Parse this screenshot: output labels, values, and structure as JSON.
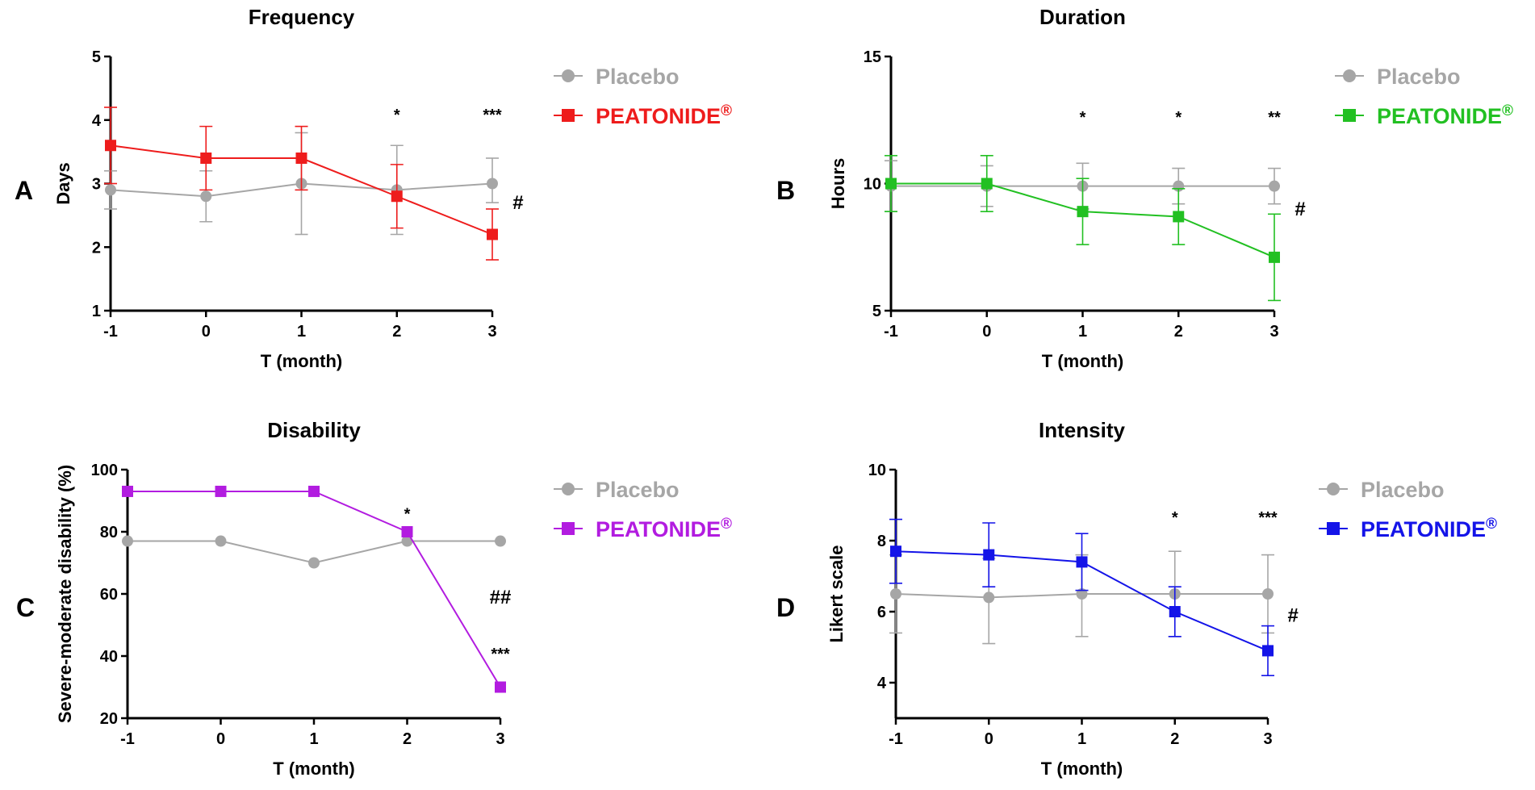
{
  "colors": {
    "placebo": "#a6a6a6",
    "frequency": "#ee1c1c",
    "duration": "#22c022",
    "disability": "#b21ce0",
    "intensity": "#1414e8"
  },
  "chart_data": [
    {
      "id": "A",
      "type": "line",
      "panel_label": "A",
      "title": "Frequency",
      "xlabel": "T (month)",
      "ylabel": "Days",
      "x": [
        -1,
        0,
        1,
        2,
        3
      ],
      "x_tick_labels": [
        "-1",
        "0",
        "1",
        "2",
        "3"
      ],
      "y_ticks": [
        1,
        2,
        3,
        4,
        5
      ],
      "y_tick_labels": [
        "1",
        "2",
        "3",
        "4",
        "5"
      ],
      "ylim": [
        1,
        5
      ],
      "series": [
        {
          "name": "Placebo",
          "color_key": "placebo",
          "marker": "circle",
          "values": [
            2.9,
            2.8,
            3.0,
            2.9,
            3.0
          ],
          "err_high": [
            3.2,
            3.2,
            3.8,
            3.6,
            3.4
          ],
          "err_low": [
            2.6,
            2.4,
            2.2,
            2.2,
            2.7
          ]
        },
        {
          "name": "PEATONIDE",
          "color_key": "frequency",
          "marker": "square",
          "values": [
            3.6,
            3.4,
            3.4,
            2.8,
            2.2
          ],
          "err_high": [
            4.2,
            3.9,
            3.9,
            3.3,
            2.6
          ],
          "err_low": [
            3.0,
            2.9,
            2.9,
            2.3,
            1.8
          ]
        }
      ],
      "annotations": [
        {
          "text": "*",
          "x": 2,
          "y": 4.0
        },
        {
          "text": "***",
          "x": 3,
          "y": 4.0
        },
        {
          "text": "#",
          "x": 3.27,
          "y": 2.7
        }
      ],
      "legend": {
        "placebo": "Placebo",
        "treatment": "PEATONIDE",
        "treatment_mark": "®",
        "position": "top-right"
      }
    },
    {
      "id": "B",
      "type": "line",
      "panel_label": "B",
      "title": "Duration",
      "xlabel": "T (month)",
      "ylabel": "Hours",
      "x": [
        -1,
        0,
        1,
        2,
        3
      ],
      "x_tick_labels": [
        "-1",
        "0",
        "1",
        "2",
        "3"
      ],
      "y_ticks": [
        5,
        10,
        15
      ],
      "y_tick_labels": [
        "5",
        "10",
        "15"
      ],
      "ylim": [
        5,
        15
      ],
      "series": [
        {
          "name": "Placebo",
          "color_key": "placebo",
          "marker": "circle",
          "values": [
            9.9,
            9.9,
            9.9,
            9.9,
            9.9
          ],
          "err_high": [
            10.9,
            10.7,
            10.8,
            10.6,
            10.6
          ],
          "err_low": [
            8.9,
            9.1,
            9.0,
            9.2,
            9.2
          ]
        },
        {
          "name": "PEATONIDE",
          "color_key": "duration",
          "marker": "square",
          "values": [
            10.0,
            10.0,
            8.9,
            8.7,
            7.1
          ],
          "err_high": [
            11.1,
            11.1,
            10.2,
            9.8,
            8.8
          ],
          "err_low": [
            8.9,
            8.9,
            7.6,
            7.6,
            5.4
          ]
        }
      ],
      "annotations": [
        {
          "text": "*",
          "x": 1,
          "y": 12.4
        },
        {
          "text": "*",
          "x": 2,
          "y": 12.4
        },
        {
          "text": "**",
          "x": 3,
          "y": 12.4
        },
        {
          "text": "#",
          "x": 3.27,
          "y": 9.0
        }
      ],
      "legend": {
        "placebo": "Placebo",
        "treatment": "PEATONIDE",
        "treatment_mark": "®",
        "position": "top-right"
      }
    },
    {
      "id": "C",
      "type": "line",
      "panel_label": "C",
      "title": "Disability",
      "xlabel": "T (month)",
      "ylabel": "Severe-moderate disability  (%)",
      "x": [
        -1,
        0,
        1,
        2,
        3
      ],
      "x_tick_labels": [
        "-1",
        "0",
        "1",
        "2",
        "3"
      ],
      "y_ticks": [
        20,
        40,
        60,
        80,
        100
      ],
      "y_tick_labels": [
        "20",
        "40",
        "60",
        "80",
        "100"
      ],
      "ylim": [
        20,
        100
      ],
      "series": [
        {
          "name": "Placebo",
          "color_key": "placebo",
          "marker": "circle",
          "values": [
            77,
            77,
            70,
            77,
            77
          ]
        },
        {
          "name": "PEATONIDE",
          "color_key": "disability",
          "marker": "square",
          "values": [
            93,
            93,
            93,
            80,
            30
          ]
        }
      ],
      "annotations": [
        {
          "text": "*",
          "x": 2,
          "y": 84
        },
        {
          "text": "##",
          "x": 3,
          "y": 59
        },
        {
          "text": "***",
          "x": 3,
          "y": 39
        }
      ],
      "legend": {
        "placebo": "Placebo",
        "treatment": "PEATONIDE",
        "treatment_mark": "®",
        "position": "top-right"
      }
    },
    {
      "id": "D",
      "type": "line",
      "panel_label": "D",
      "title": "Intensity",
      "xlabel": "T (month)",
      "ylabel": "Likert scale",
      "x": [
        -1,
        0,
        1,
        2,
        3
      ],
      "x_tick_labels": [
        "-1",
        "0",
        "1",
        "2",
        "3"
      ],
      "y_ticks": [
        4,
        6,
        8,
        10
      ],
      "y_tick_labels": [
        "4",
        "6",
        "8",
        "10"
      ],
      "ylim": [
        3,
        10
      ],
      "series": [
        {
          "name": "Placebo",
          "color_key": "placebo",
          "marker": "circle",
          "values": [
            6.5,
            6.4,
            6.5,
            6.5,
            6.5
          ],
          "err_high": [
            7.6,
            7.5,
            7.6,
            7.7,
            7.6
          ],
          "err_low": [
            5.4,
            5.1,
            5.3,
            5.3,
            5.4
          ]
        },
        {
          "name": "PEATONIDE",
          "color_key": "intensity",
          "marker": "square",
          "values": [
            7.7,
            7.6,
            7.4,
            6.0,
            4.9
          ],
          "err_high": [
            8.6,
            8.5,
            8.2,
            6.7,
            5.6
          ],
          "err_low": [
            6.8,
            6.7,
            6.6,
            5.3,
            4.2
          ]
        }
      ],
      "annotations": [
        {
          "text": "*",
          "x": 2,
          "y": 8.5
        },
        {
          "text": "***",
          "x": 3,
          "y": 8.5
        },
        {
          "text": "#",
          "x": 3.27,
          "y": 5.9
        }
      ],
      "legend": {
        "placebo": "Placebo",
        "treatment": "PEATONIDE",
        "treatment_mark": "®",
        "position": "top-right"
      }
    }
  ]
}
